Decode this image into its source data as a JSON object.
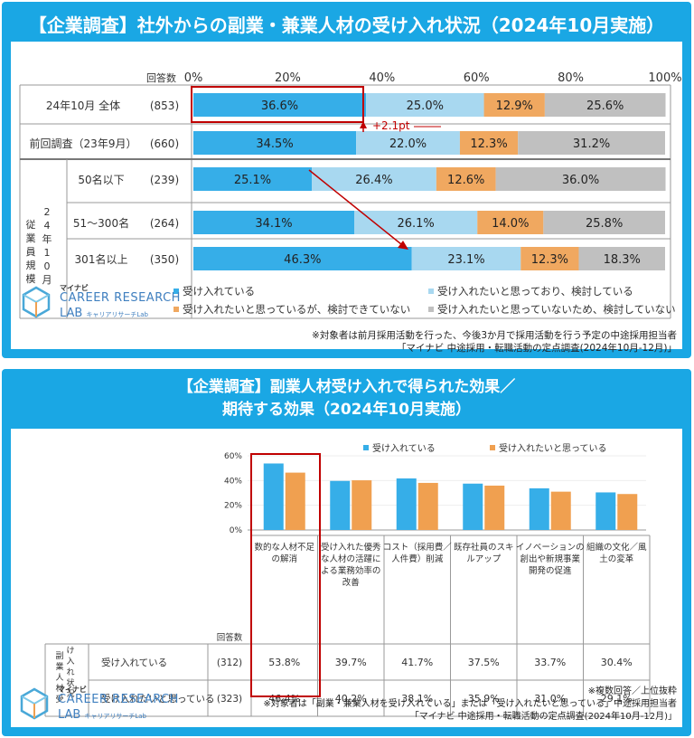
{
  "top": {
    "title": "【企業調査】社外からの副業・兼業人材の受け入れ状況（2024年10月実施）",
    "respondents_header": "回答数",
    "axis_ticks": [
      "0%",
      "20%",
      "40%",
      "60%",
      "80%",
      "100%"
    ],
    "group_label": "従業員規模",
    "group_label_year": "24年10月",
    "delta_annotation": "+2.1pt",
    "legend": [
      "受け入れている",
      "受け入れたいと思っており、検討している",
      "受け入れたいと思っているが、検討できていない",
      "受け入れたいと思っていないため、検討していない"
    ],
    "note_line1": "※対象者は前月採用活動を行った、今後3か月で採用活動を行う予定の中途採用担当者",
    "note_line2": "「マイナビ 中途採用・転職活動の定点調査(2024年10月-12月)」",
    "colors": [
      "#36aee8",
      "#a8d8f0",
      "#f0a860",
      "#c0c0c0"
    ]
  },
  "chart_data": [
    {
      "type": "bar",
      "orientation": "horizontal-stacked-100",
      "title": "【企業調査】社外からの副業・兼業人材の受け入れ状況（2024年10月実施）",
      "series": [
        {
          "name": "受け入れている",
          "values": [
            36.6,
            34.5,
            25.1,
            34.1,
            46.3
          ]
        },
        {
          "name": "受け入れたいと思っており、検討している",
          "values": [
            25.0,
            22.0,
            26.4,
            26.1,
            23.1
          ]
        },
        {
          "name": "受け入れたいと思っているが、検討できていない",
          "values": [
            12.9,
            12.3,
            12.6,
            14.0,
            12.3
          ]
        },
        {
          "name": "受け入れたいと思っていないため、検討していない",
          "values": [
            25.6,
            31.2,
            36.0,
            25.8,
            18.3
          ]
        }
      ],
      "categories": [
        "24年10月 全体",
        "前回調査（23年9月）",
        "50名以下",
        "51～300名",
        "301名以上"
      ],
      "respondents": [
        "(853)",
        "(660)",
        "(239)",
        "(264)",
        "(350)"
      ],
      "xlim": [
        0,
        100
      ]
    },
    {
      "type": "bar",
      "orientation": "vertical-grouped",
      "title": "【企業調査】副業人材受け入れで得られた効果／期待する効果（2024年10月実施）",
      "categories": [
        "数的な人材不足の解消",
        "受け入れた優秀な人材の活躍による業務効率の改善",
        "コスト（採用費／人件費）削減",
        "既存社員のスキルアップ",
        "イノベーションの創出や新規事業開発の促進",
        "組織の文化／風土の変革"
      ],
      "series": [
        {
          "name": "受け入れている",
          "respondents": "(312)",
          "values": [
            53.8,
            39.7,
            41.7,
            37.5,
            33.7,
            30.4
          ]
        },
        {
          "name": "受け入れたいと思っている",
          "respondents": "(323)",
          "values": [
            46.4,
            40.2,
            38.1,
            35.9,
            31.0,
            29.1
          ]
        }
      ],
      "yticks": [
        "60%",
        "40%",
        "20%",
        "0%"
      ],
      "ylim": [
        0,
        60
      ]
    }
  ],
  "bottom": {
    "title_line1": "【企業調査】副業人材受け入れで得られた効果／",
    "title_line2": "期待する効果（2024年10月実施）",
    "respondents_header": "回答数",
    "row_group_label": "副業人材受け入れ状況",
    "category_lines": [
      [
        "数的な人材不足",
        "の解消"
      ],
      [
        "受け入れた優秀",
        "な人材の活躍に",
        "よる業務効率の",
        "改善"
      ],
      [
        "コスト（採用費／",
        "人件費）削減"
      ],
      [
        "既存社員のスキ",
        "ルアップ"
      ],
      [
        "イノベーションの",
        "創出や新規事業",
        "開発の促進"
      ],
      [
        "組織の文化／風",
        "土の変革"
      ]
    ],
    "table_values": [
      [
        "53.8%",
        "39.7%",
        "41.7%",
        "37.5%",
        "33.7%",
        "30.4%"
      ],
      [
        "46.4%",
        "40.2%",
        "38.1%",
        "35.9%",
        "31.0%",
        "29.1%"
      ]
    ],
    "note_line1": "※複数回答／上位抜粋",
    "note_line2": "※対象者は「副業・兼業人材を受け入れている」または「受け入れたいと思っている」中途採用担当者",
    "note_line3": "「マイナビ 中途採用・転職活動の定点調査(2024年10月-12月)」",
    "colors": [
      "#36aee8",
      "#f0a050"
    ]
  },
  "logo": {
    "small": "マイナビ",
    "main": "CAREER RESEARCH",
    "lab": "LAB",
    "lab_jp": "キャリアリサーチLab"
  }
}
